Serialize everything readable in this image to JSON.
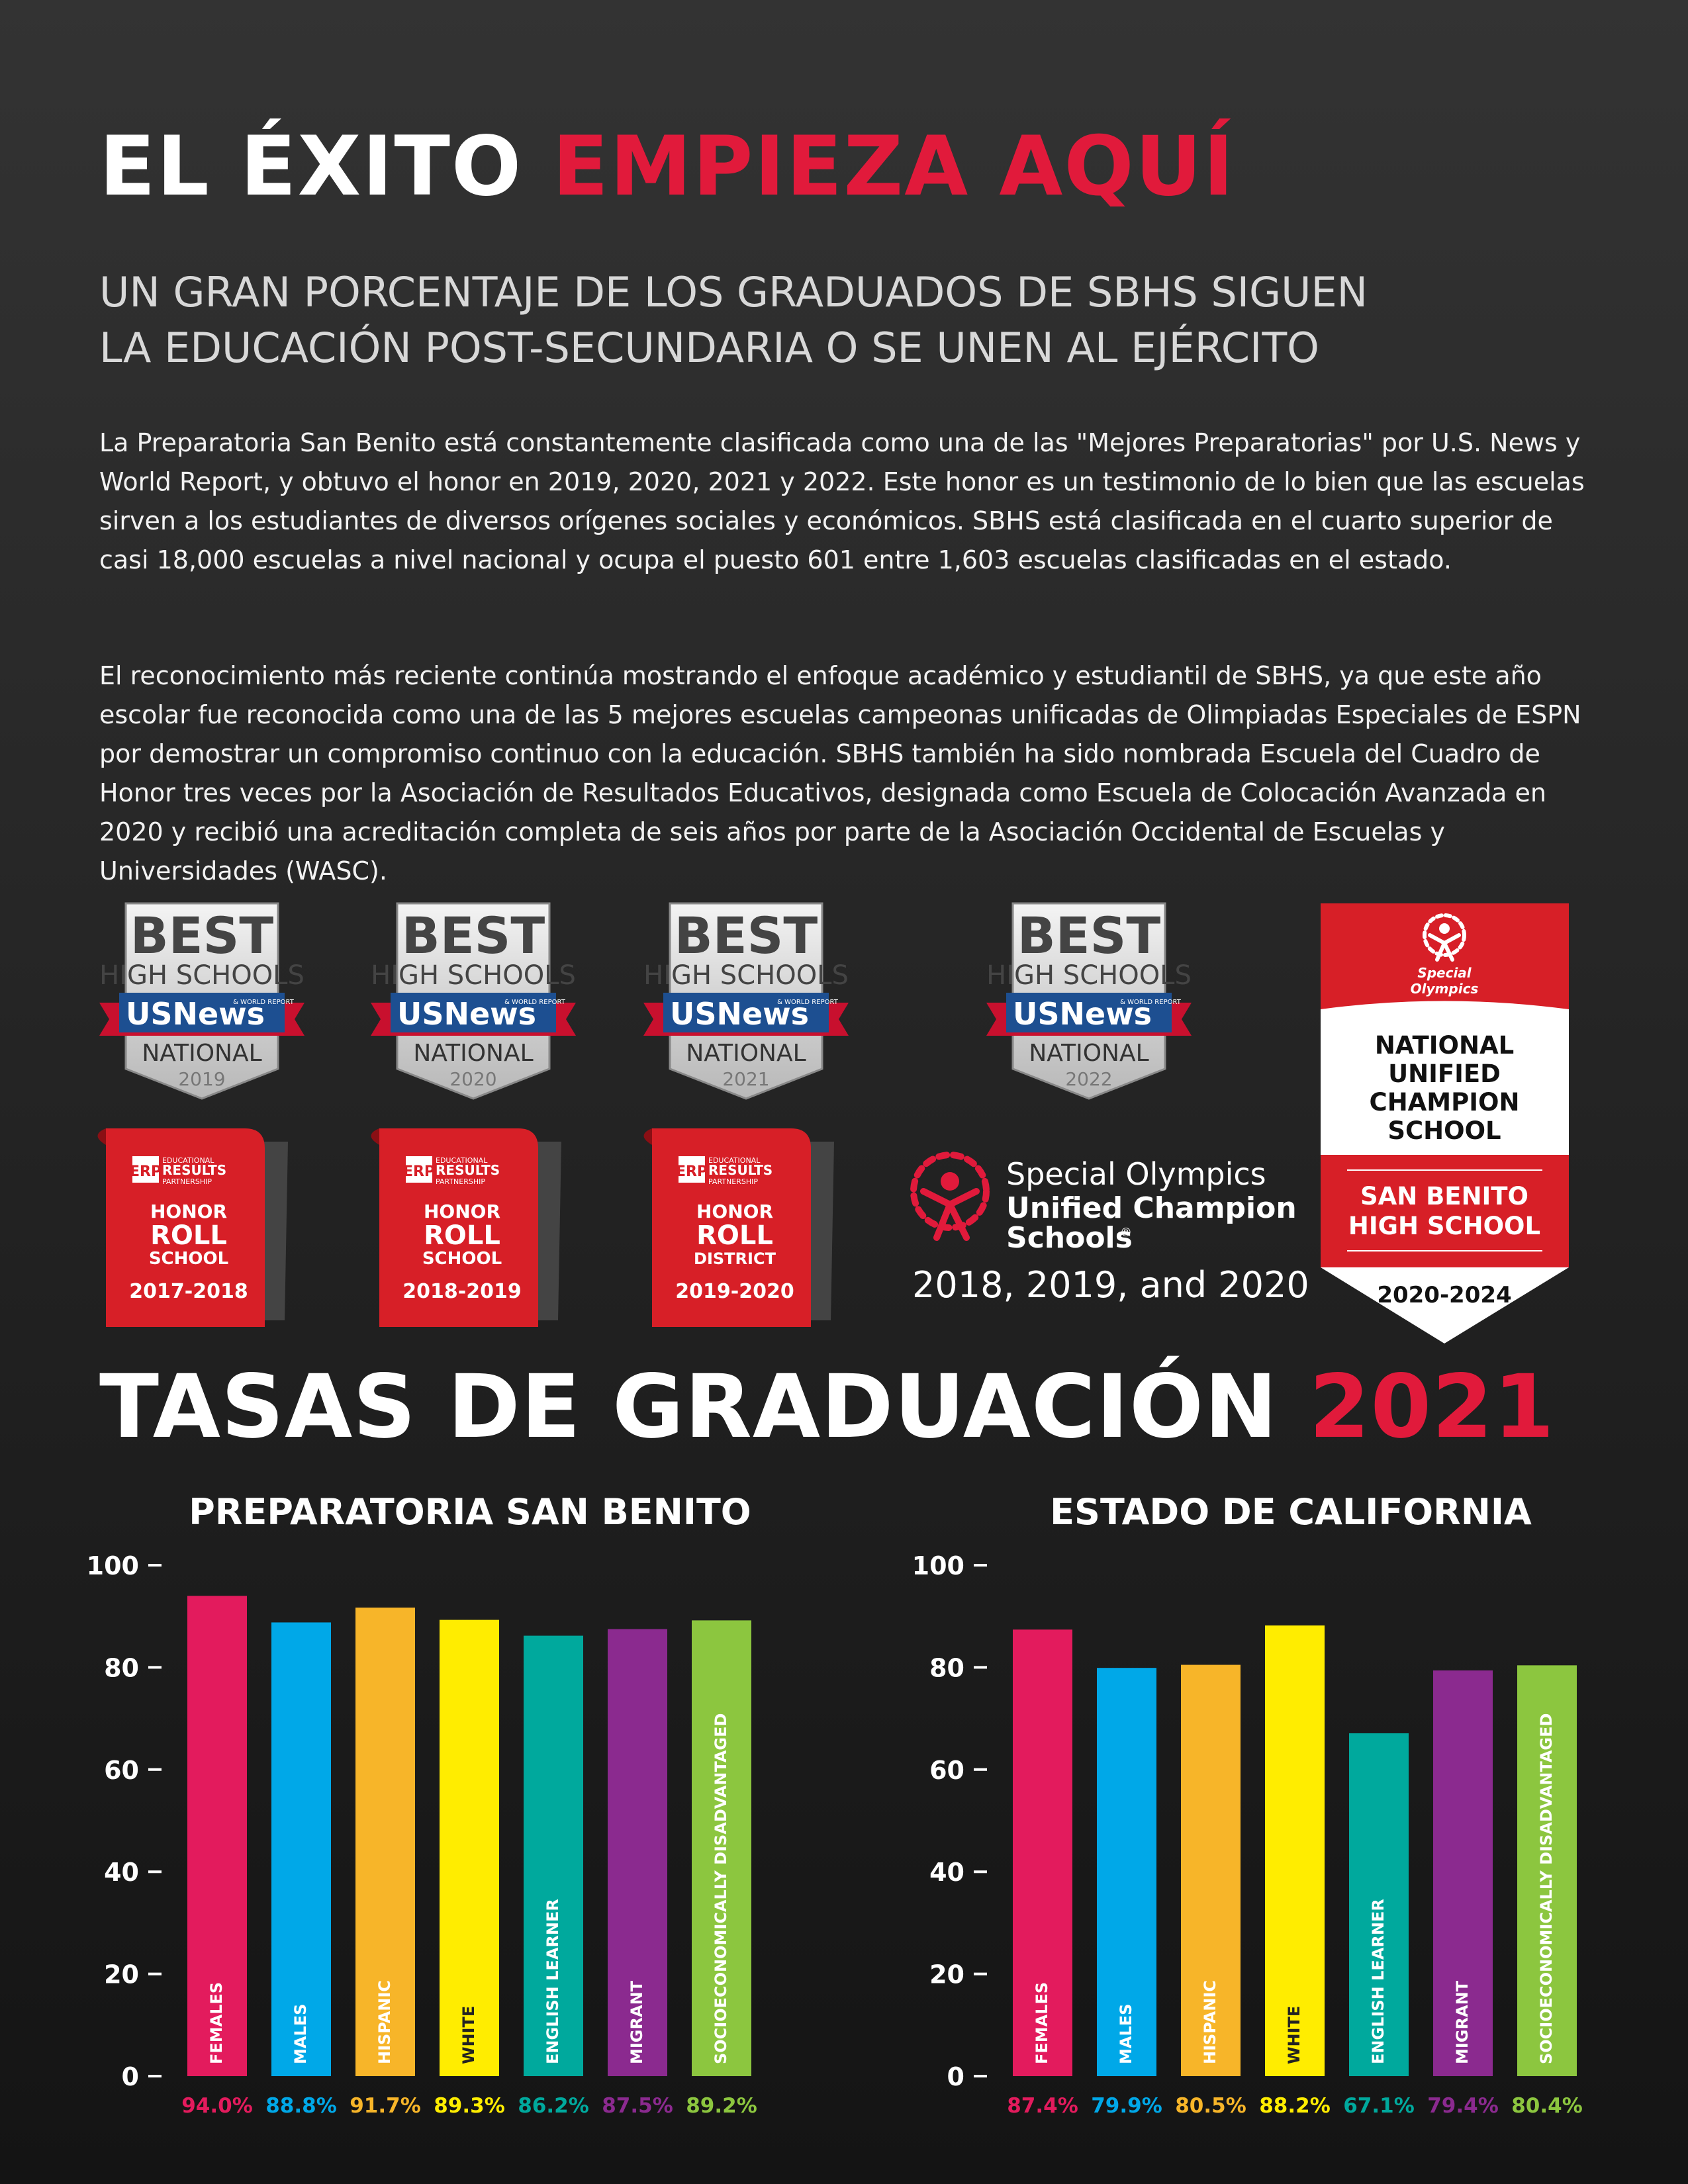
{
  "header": {
    "title_white": "EL ÉXITO",
    "title_red": "EMPIEZA AQUÍ",
    "subtitle_line1": "UN GRAN PORCENTAJE DE LOS GRADUADOS DE SBHS SIGUEN",
    "subtitle_line2": "LA EDUCACIÓN POST-SECUNDARIA O SE UNEN AL EJÉRCITO"
  },
  "body": {
    "paragraph1": "La Preparatoria San Benito está constantemente clasificada como una de las \"Mejores Preparatorias\" por U.S. News y World Report, y obtuvo el honor en 2019, 2020, 2021 y 2022. Este honor es un testimonio de lo bien que las escuelas sirven a los estudiantes de diversos orígenes sociales y económicos.  SBHS está clasificada en el cuarto superior de casi 18,000 escuelas a nivel nacional y ocupa el puesto 601 entre 1,603 escuelas clasificadas en el estado.",
    "paragraph2": "El reconocimiento más reciente continúa mostrando el enfoque académico y estudiantil de SBHS, ya que este año escolar fue reconocida como una de las 5 mejores escuelas campeonas unificadas de Olimpiadas Especiales de ESPN por demostrar un compromiso continuo con la educación.  SBHS también ha sido nombrada Escuela del Cuadro de Honor tres veces por la Asociación de Resultados Educativos, designada como Escuela de Colocación Avanzada en 2020 y recibió una acreditación completa de seis años por parte de la Asociación Occidental de Escuelas y Universidades (WASC)."
  },
  "badges": {
    "usnews": [
      {
        "best": "BEST",
        "hs": "HIGH SCHOOLS",
        "brand": "USNews",
        "wr": "& WORLD REPORT",
        "national": "NATIONAL",
        "year": "2019"
      },
      {
        "best": "BEST",
        "hs": "HIGH SCHOOLS",
        "brand": "USNews",
        "wr": "& WORLD REPORT",
        "national": "NATIONAL",
        "year": "2020"
      },
      {
        "best": "BEST",
        "hs": "HIGH SCHOOLS",
        "brand": "USNews",
        "wr": "& WORLD REPORT",
        "national": "NATIONAL",
        "year": "2021"
      },
      {
        "best": "BEST",
        "hs": "HIGH SCHOOLS",
        "brand": "USNews",
        "wr": "& WORLD REPORT",
        "national": "NATIONAL",
        "year": "2022"
      }
    ],
    "honor_roll": [
      {
        "logo": "ERP",
        "org1": "EDUCATIONAL",
        "org2": "RESULTS",
        "org3": "PARTNERSHIP",
        "l1": "HONOR",
        "l2": "ROLL",
        "l3": "SCHOOL",
        "years": "2017-2018"
      },
      {
        "logo": "ERP",
        "org1": "EDUCATIONAL",
        "org2": "RESULTS",
        "org3": "PARTNERSHIP",
        "l1": "HONOR",
        "l2": "ROLL",
        "l3": "SCHOOL",
        "years": "2018-2019"
      },
      {
        "logo": "ERP",
        "org1": "EDUCATIONAL",
        "org2": "RESULTS",
        "org3": "PARTNERSHIP",
        "l1": "HONOR",
        "l2": "ROLL",
        "l3": "DISTRICT",
        "years": "2019-2020"
      }
    ],
    "special_olympics": {
      "line1": "Special Olympics",
      "line2": "Unified Champion",
      "line3": "Schools",
      "reg": "®",
      "years": "2018, 2019, and 2020"
    },
    "banner": {
      "logo1": "Special",
      "logo2": "Olympics",
      "l1": "NATIONAL",
      "l2": "UNIFIED",
      "l3": "CHAMPION",
      "l4": "SCHOOL",
      "school1": "SAN BENITO",
      "school2": "HIGH SCHOOL",
      "years": "2020-2024"
    }
  },
  "section": {
    "title_white": "TASAS DE GRADUACIÓN",
    "title_red": "2021"
  },
  "chart_data": [
    {
      "type": "bar",
      "title": "PREPARATORIA SAN BENITO",
      "categories": [
        "FEMALES",
        "MALES",
        "HISPANIC",
        "WHITE",
        "ENGLISH LEARNER",
        "MIGRANT",
        "SOCIOECONOMICALLY DISADVANTAGED"
      ],
      "values": [
        94.0,
        88.8,
        91.7,
        89.3,
        86.2,
        87.5,
        89.2
      ],
      "value_labels": [
        "94.0%",
        "88.8%",
        "91.7%",
        "89.3%",
        "86.2%",
        "87.5%",
        "89.2%"
      ],
      "colors": [
        "#e31b5d",
        "#00a8e8",
        "#f7b529",
        "#ffed00",
        "#00a99d",
        "#8b2a8f",
        "#8cc63f"
      ],
      "yticks": [
        0,
        20,
        40,
        60,
        80,
        100
      ],
      "ylim": [
        0,
        100
      ],
      "xlabel": "",
      "ylabel": ""
    },
    {
      "type": "bar",
      "title": "ESTADO DE CALIFORNIA",
      "categories": [
        "FEMALES",
        "MALES",
        "HISPANIC",
        "WHITE",
        "ENGLISH LEARNER",
        "MIGRANT",
        "SOCIOECONOMICALLY DISADVANTAGED"
      ],
      "values": [
        87.4,
        79.9,
        80.5,
        88.2,
        67.1,
        79.4,
        80.4
      ],
      "value_labels": [
        "87.4%",
        "79.9%",
        "80.5%",
        "88.2%",
        "67.1%",
        "79.4%",
        "80.4%"
      ],
      "colors": [
        "#e31b5d",
        "#00a8e8",
        "#f7b529",
        "#ffed00",
        "#00a99d",
        "#8b2a8f",
        "#8cc63f"
      ],
      "yticks": [
        0,
        20,
        40,
        60,
        80,
        100
      ],
      "ylim": [
        0,
        100
      ],
      "xlabel": "",
      "ylabel": ""
    }
  ]
}
